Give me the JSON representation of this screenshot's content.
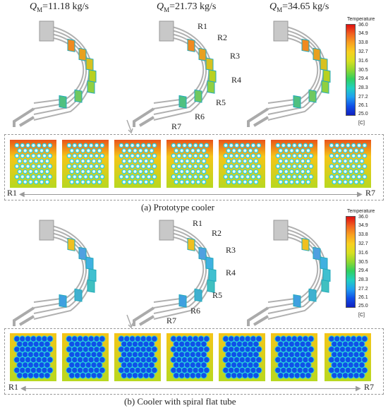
{
  "flow_labels": [
    {
      "symbol": "Q",
      "sub": "M",
      "value": "=11.18 kg/s"
    },
    {
      "symbol": "Q",
      "sub": "M",
      "value": "=21.73 kg/s"
    },
    {
      "symbol": "Q",
      "sub": "M",
      "value": "=34.65 kg/s"
    }
  ],
  "row_labels": [
    "R1",
    "R2",
    "R3",
    "R4",
    "R5",
    "R6",
    "R7"
  ],
  "colorbar": {
    "title": "Temperature",
    "ticks": [
      "36.0",
      "34.9",
      "33.8",
      "32.7",
      "31.6",
      "30.5",
      "29.4",
      "28.3",
      "27.2",
      "26.1",
      "25.0"
    ],
    "unit": "[C]"
  },
  "panel_a": {
    "caption": "(a) Prototype cooler",
    "axis_start": "R1",
    "axis_end": "R7"
  },
  "panel_b": {
    "caption": "(b) Cooler with spiral flat tube",
    "axis_start": "R1",
    "axis_end": "R7"
  },
  "colors": {
    "hot": "#e8521a",
    "warm": "#f5c518",
    "mid": "#b8d820",
    "cool": "#2ad0e0",
    "cold": "#1050e8"
  }
}
